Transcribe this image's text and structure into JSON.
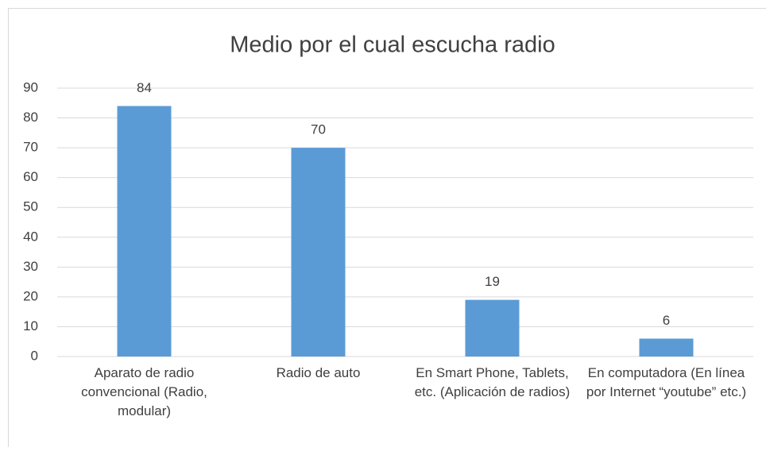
{
  "chart_data": {
    "type": "bar",
    "title": "Medio por el cual escucha radio",
    "categories": [
      "Aparato de radio convencional (Radio, modular)",
      "Radio de auto",
      "En Smart Phone, Tablets, etc. (Aplicación de radios)",
      "En computadora (En línea por Internet “youtube” etc.)"
    ],
    "values": [
      84,
      70,
      19,
      6
    ],
    "color": "#5b9bd5",
    "ylim": [
      0,
      90
    ],
    "yticks": [
      0,
      10,
      20,
      30,
      40,
      50,
      60,
      70,
      80,
      90
    ],
    "grid": true
  }
}
